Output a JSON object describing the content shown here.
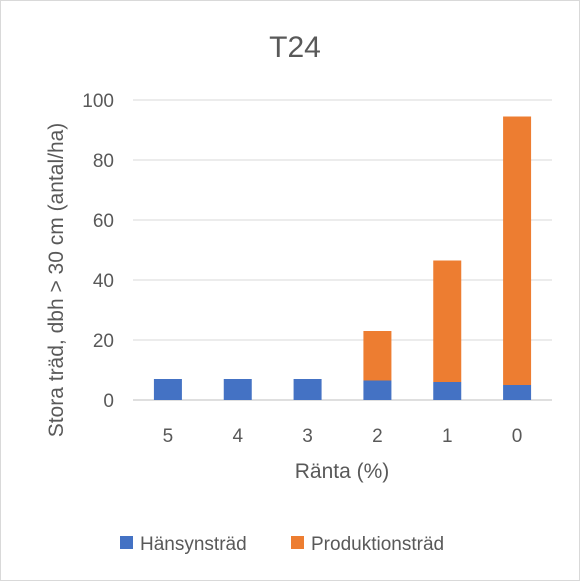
{
  "chart_data": {
    "type": "bar",
    "stacked": true,
    "title": "T24",
    "xlabel": "Ränta (%)",
    "ylabel": "Stora träd, dbh > 30 cm (antal/ha)",
    "categories": [
      "5",
      "4",
      "3",
      "2",
      "1",
      "0"
    ],
    "series": [
      {
        "name": "Hänsynsträd",
        "color": "#4472c4",
        "values": [
          7,
          7,
          7,
          6.5,
          6,
          5
        ]
      },
      {
        "name": "Produktionsträd",
        "color": "#ed7d31",
        "values": [
          0,
          0,
          0,
          16.5,
          40.5,
          89.5
        ]
      }
    ],
    "ylim": [
      0,
      100
    ],
    "yticks": [
      "0",
      "20",
      "40",
      "60",
      "80",
      "100"
    ],
    "grid": true,
    "legend_position": "bottom"
  }
}
